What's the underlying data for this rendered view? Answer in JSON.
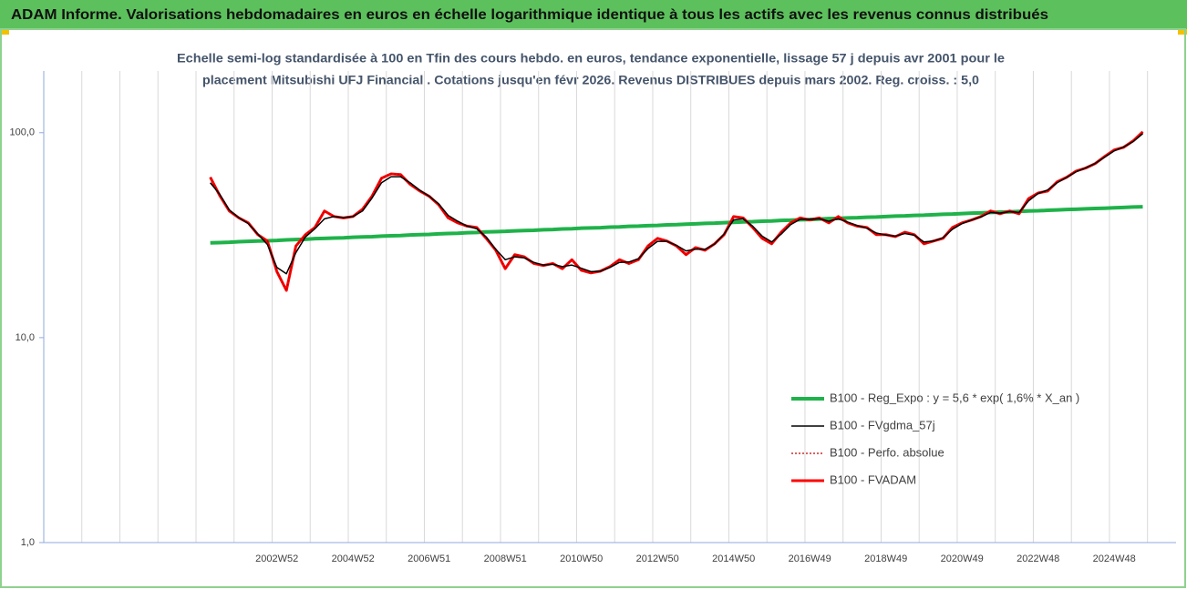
{
  "chart_data": {
    "type": "line",
    "title": "ADAM Informe. Valorisations hebdomadaires en euros en échelle logarithmique identique à tous les actifs avec les revenus connus distribués",
    "subtitle": [
      "Echelle semi-log standardisée à 100 en Tfin des cours hebdo. en euros, tendance exponentielle, lissage 57 j depuis avr 2001 pour le",
      "placement Mitsubishi UFJ Financial . Cotations jusqu'en févr 2026. Revenus DISTRIBUES depuis mars 2002. Reg. croiss. : 5,0"
    ],
    "log_scale": true,
    "grid": true,
    "legend": "lower right",
    "ylim": [
      1,
      200
    ],
    "yticks": [
      {
        "value": 1,
        "label": "1,0"
      },
      {
        "value": 10,
        "label": "10,0"
      },
      {
        "value": 100,
        "label": "100,0"
      }
    ],
    "categories": [
      null,
      null,
      null,
      null,
      null,
      null,
      null,
      null,
      null,
      null,
      null,
      null,
      null,
      null,
      null,
      null,
      null,
      null,
      null,
      null,
      null,
      null,
      null,
      null,
      "2002W52",
      null,
      null,
      null,
      null,
      null,
      null,
      null,
      "2004W52",
      null,
      null,
      null,
      null,
      null,
      null,
      null,
      "2006W51",
      null,
      null,
      null,
      null,
      null,
      null,
      null,
      "2008W51",
      null,
      null,
      null,
      null,
      null,
      null,
      null,
      "2010W50",
      null,
      null,
      null,
      null,
      null,
      null,
      null,
      "2012W50",
      null,
      null,
      null,
      null,
      null,
      null,
      null,
      "2014W50",
      null,
      null,
      null,
      null,
      null,
      null,
      null,
      "2016W49",
      null,
      null,
      null,
      null,
      null,
      null,
      null,
      "2018W49",
      null,
      null,
      null,
      null,
      null,
      null,
      null,
      "2020W49",
      null,
      null,
      null,
      null,
      null,
      null,
      null,
      "2022W48",
      null,
      null,
      null,
      null,
      null,
      null,
      null,
      "2024W48",
      null,
      null,
      null,
      null,
      null,
      null
    ],
    "series": [
      {
        "name": "B100 - Reg_Expo : y = 5,6 * exp( 1,6% *  X_an )",
        "color": "#1fb24a",
        "width": 4,
        "style": "solid",
        "values": [
          null,
          null,
          null,
          null,
          null,
          null,
          null,
          null,
          null,
          null,
          null,
          null,
          null,
          null,
          null,
          null,
          null,
          29.0,
          29.1,
          29.2,
          29.4,
          29.5,
          29.6,
          29.7,
          29.8,
          30.0,
          30.1,
          30.2,
          30.4,
          30.5,
          30.6,
          30.7,
          30.9,
          31.0,
          31.1,
          31.3,
          31.4,
          31.5,
          31.7,
          31.8,
          31.9,
          32.1,
          32.2,
          32.3,
          32.5,
          32.6,
          32.8,
          32.9,
          33.0,
          33.2,
          33.3,
          33.4,
          33.6,
          33.7,
          33.9,
          34.0,
          34.2,
          34.3,
          34.4,
          34.6,
          34.7,
          34.9,
          35.0,
          35.2,
          35.3,
          35.5,
          35.6,
          35.8,
          35.9,
          36.1,
          36.2,
          36.4,
          36.5,
          36.7,
          36.8,
          37.0,
          37.1,
          37.3,
          37.4,
          37.6,
          37.7,
          37.9,
          38.1,
          38.2,
          38.4,
          38.5,
          38.7,
          38.8,
          39.0,
          39.2,
          39.3,
          39.5,
          39.6,
          39.8,
          40.0,
          40.1,
          40.3,
          40.5,
          40.6,
          40.8,
          41.0,
          41.1,
          41.3,
          41.5,
          41.6,
          41.8,
          42.0,
          42.2,
          42.3,
          42.5,
          42.7,
          42.8,
          43.0,
          43.2,
          43.4,
          43.5,
          null,
          null,
          null
        ]
      },
      {
        "name": "B100 - FVgdma_57j",
        "color": "#000000",
        "width": 1.5,
        "style": "solid",
        "values": [
          null,
          null,
          null,
          null,
          null,
          null,
          null,
          null,
          null,
          null,
          null,
          null,
          null,
          null,
          null,
          null,
          null,
          57,
          50,
          42,
          38.5,
          36,
          32,
          28.5,
          22,
          20.5,
          26,
          31,
          34,
          38,
          39,
          38.5,
          39,
          41.5,
          48,
          57,
          61,
          61,
          57,
          52.5,
          49,
          45,
          39.5,
          37,
          35,
          34,
          31,
          27,
          24,
          24.8,
          24.5,
          23.3,
          22.6,
          22.8,
          22.2,
          22.6,
          21.8,
          21,
          21.1,
          22,
          23.3,
          23.4,
          24.3,
          27.2,
          29.5,
          29.5,
          28.2,
          26.5,
          27,
          27,
          28.6,
          32,
          37.5,
          38,
          35,
          31.3,
          29.3,
          32,
          35.6,
          37.8,
          37.8,
          38,
          37,
          38,
          36.6,
          35.2,
          34.2,
          32.4,
          31.7,
          31.3,
          32.2,
          31.6,
          29.3,
          29.6,
          30.7,
          33.8,
          36,
          37.5,
          38.8,
          40.8,
          40.5,
          41.2,
          40.8,
          46.5,
          50.5,
          52.5,
          57,
          60.5,
          64.5,
          67.3,
          70.8,
          76,
          81.5,
          85.2,
          90.5,
          99,
          null,
          null,
          null
        ]
      },
      {
        "name": "B100 - Perfo. absolue",
        "color": "#c00000",
        "width": 1.2,
        "style": "dotted",
        "values": [
          null,
          null,
          null,
          null,
          null,
          null,
          null,
          null,
          null,
          null,
          null,
          null,
          null,
          null,
          null,
          null,
          null,
          60.6,
          49.3,
          41.5,
          38.4,
          36.3,
          31.8,
          29.6,
          21,
          17,
          28,
          31.8,
          34.5,
          41.5,
          39,
          38.4,
          39,
          42.3,
          49,
          60,
          63,
          62.5,
          56,
          52,
          49,
          44.5,
          38.4,
          36.3,
          35,
          34.5,
          30.5,
          26.7,
          21.7,
          25.4,
          24.8,
          23,
          22.5,
          23,
          21.7,
          24,
          21.3,
          20.7,
          21.1,
          22.2,
          24,
          23,
          24,
          28,
          30.5,
          29.6,
          28,
          25.4,
          27.5,
          26.7,
          28.7,
          31.8,
          39,
          38.4,
          34.5,
          30.5,
          28.7,
          32.7,
          36.3,
          38.4,
          37.5,
          38.4,
          36.3,
          39,
          36.3,
          35,
          34.5,
          31.8,
          31.8,
          31.1,
          32.7,
          31.8,
          28.7,
          29.6,
          30.5,
          34.5,
          36.3,
          37.5,
          39,
          41.5,
          40.2,
          41.5,
          40.2,
          47.7,
          50.8,
          51.9,
          57.6,
          60.6,
          65,
          67.2,
          70.7,
          76.6,
          82.4,
          84.9,
          91.3,
          101,
          null,
          null,
          null
        ]
      },
      {
        "name": "B100 - FVADAM",
        "color": "#ff0000",
        "width": 3,
        "style": "solid",
        "values": [
          null,
          null,
          null,
          null,
          null,
          null,
          null,
          null,
          null,
          null,
          null,
          null,
          null,
          null,
          null,
          null,
          null,
          60.6,
          49.3,
          41.5,
          38.4,
          36.3,
          31.8,
          29.6,
          21,
          17,
          28,
          31.8,
          34.5,
          41.5,
          39,
          38.4,
          39,
          42.3,
          49,
          60,
          63,
          62.5,
          56,
          52,
          49,
          44.5,
          38.4,
          36.3,
          35,
          34.5,
          30.5,
          26.7,
          21.7,
          25.4,
          24.8,
          23,
          22.5,
          23,
          21.7,
          24,
          21.3,
          20.7,
          21.1,
          22.2,
          24,
          23,
          24,
          28,
          30.5,
          29.6,
          28,
          25.4,
          27.5,
          26.7,
          28.7,
          31.8,
          39,
          38.4,
          34.5,
          30.5,
          28.7,
          32.7,
          36.3,
          38.4,
          37.5,
          38.4,
          36.3,
          39,
          36.3,
          35,
          34.5,
          31.8,
          31.8,
          31.1,
          32.7,
          31.8,
          28.7,
          29.6,
          30.5,
          34.5,
          36.3,
          37.5,
          39,
          41.5,
          40.2,
          41.5,
          40.2,
          47.7,
          50.8,
          51.9,
          57.6,
          60.6,
          65,
          67.2,
          70.7,
          76.6,
          82.4,
          84.9,
          91.3,
          101,
          null,
          null,
          null
        ]
      }
    ]
  }
}
